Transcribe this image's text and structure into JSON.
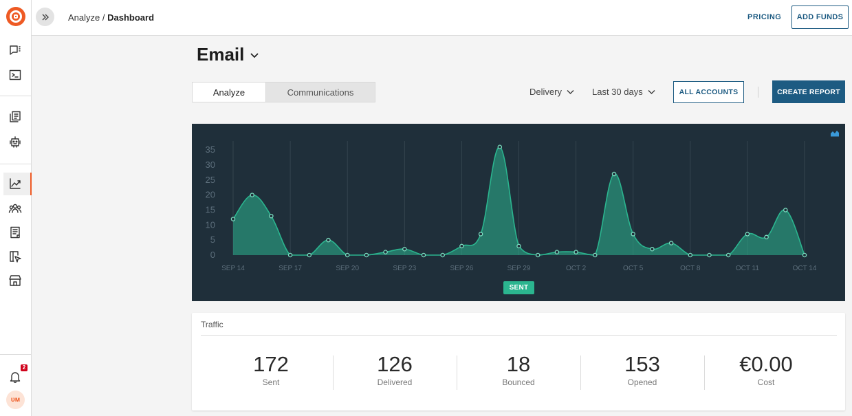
{
  "header": {
    "breadcrumb_parent": "Analyze /",
    "breadcrumb_current": "Dashboard",
    "pricing_label": "PRICING",
    "add_funds_label": "ADD FUNDS"
  },
  "rail": {
    "notification_count": "2",
    "avatar_initials": "ᴜᴍ"
  },
  "page": {
    "title": "Email",
    "tabs": [
      {
        "label": "Analyze",
        "active": true
      },
      {
        "label": "Communications",
        "active": false
      }
    ],
    "metric_dropdown": "Delivery",
    "range_dropdown": "Last 30 days",
    "all_accounts_label": "ALL ACCOUNTS",
    "create_report_label": "CREATE REPORT"
  },
  "chart_data": {
    "type": "area",
    "x": [
      "Sep 14",
      "Sep 15",
      "Sep 16",
      "Sep 17",
      "Sep 18",
      "Sep 19",
      "Sep 20",
      "Sep 21",
      "Sep 22",
      "Sep 23",
      "Sep 24",
      "Sep 25",
      "Sep 26",
      "Sep 27",
      "Sep 28",
      "Sep 29",
      "Sep 30",
      "Oct 1",
      "Oct 2",
      "Oct 3",
      "Oct 4",
      "Oct 5",
      "Oct 6",
      "Oct 7",
      "Oct 8",
      "Oct 9",
      "Oct 10",
      "Oct 11",
      "Oct 12",
      "Oct 13",
      "Oct 14"
    ],
    "series": [
      {
        "name": "SENT",
        "values": [
          12,
          20,
          13,
          0,
          0,
          5,
          0,
          0,
          1,
          2,
          0,
          0,
          3,
          7,
          36,
          3,
          0,
          1,
          1,
          0,
          27,
          7,
          2,
          4,
          0,
          0,
          0,
          7,
          6,
          15,
          0
        ]
      }
    ],
    "x_tick_labels": [
      "SEP 14",
      "SEP 17",
      "SEP 20",
      "SEP 23",
      "SEP 26",
      "SEP 29",
      "OCT 2",
      "OCT 5",
      "OCT 8",
      "OCT 11",
      "OCT 14"
    ],
    "y_tick_labels": [
      "0",
      "5",
      "10",
      "15",
      "20",
      "25",
      "30",
      "35"
    ],
    "ylim": [
      0,
      38
    ],
    "grid": "vertical",
    "legend": "bottom-center",
    "colors": {
      "background": "#1f2f3a",
      "series": "#2bb58f"
    }
  },
  "traffic": {
    "title": "Traffic",
    "stats": [
      {
        "value": "172",
        "label": "Sent"
      },
      {
        "value": "126",
        "label": "Delivered"
      },
      {
        "value": "18",
        "label": "Bounced"
      },
      {
        "value": "153",
        "label": "Opened"
      },
      {
        "value": "€0.00",
        "label": "Cost"
      }
    ]
  }
}
